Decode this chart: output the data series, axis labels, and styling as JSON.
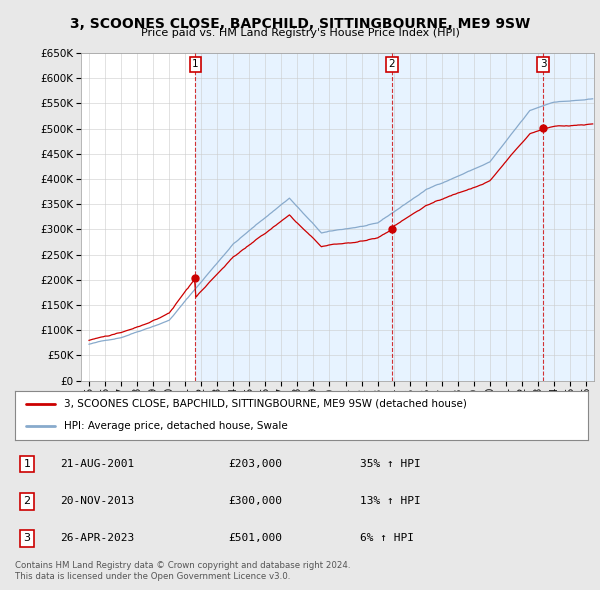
{
  "title": "3, SCOONES CLOSE, BAPCHILD, SITTINGBOURNE, ME9 9SW",
  "subtitle": "Price paid vs. HM Land Registry's House Price Index (HPI)",
  "sales": [
    {
      "date_num": 2001.64,
      "price": 203000,
      "label": "1",
      "date_str": "21-AUG-2001",
      "pct": "35%↑ HPI"
    },
    {
      "date_num": 2013.9,
      "price": 300000,
      "label": "2",
      "date_str": "20-NOV-2013",
      "pct": "13%↑ HPI"
    },
    {
      "date_num": 2023.32,
      "price": 501000,
      "label": "3",
      "date_str": "26-APR-2023",
      "pct": "6%↑ HPI"
    }
  ],
  "property_color": "#cc0000",
  "hpi_color": "#88aacc",
  "shade_color": "#ddeeff",
  "background_color": "#e8e8e8",
  "plot_bg_color": "#ffffff",
  "ylim": [
    0,
    650000
  ],
  "yticks": [
    0,
    50000,
    100000,
    150000,
    200000,
    250000,
    300000,
    350000,
    400000,
    450000,
    500000,
    550000,
    600000,
    650000
  ],
  "xlim": [
    1994.5,
    2026.5
  ],
  "footnote1": "Contains HM Land Registry data © Crown copyright and database right 2024.",
  "footnote2": "This data is licensed under the Open Government Licence v3.0.",
  "legend1": "3, SCOONES CLOSE, BAPCHILD, SITTINGBOURNE, ME9 9SW (detached house)",
  "legend2": "HPI: Average price, detached house, Swale",
  "table": [
    {
      "num": "1",
      "date": "21-AUG-2001",
      "price": "£203,000",
      "pct": "35% ↑ HPI"
    },
    {
      "num": "2",
      "date": "20-NOV-2013",
      "price": "£300,000",
      "pct": "13% ↑ HPI"
    },
    {
      "num": "3",
      "date": "26-APR-2023",
      "price": "£501,000",
      "pct": "6% ↑ HPI"
    }
  ]
}
